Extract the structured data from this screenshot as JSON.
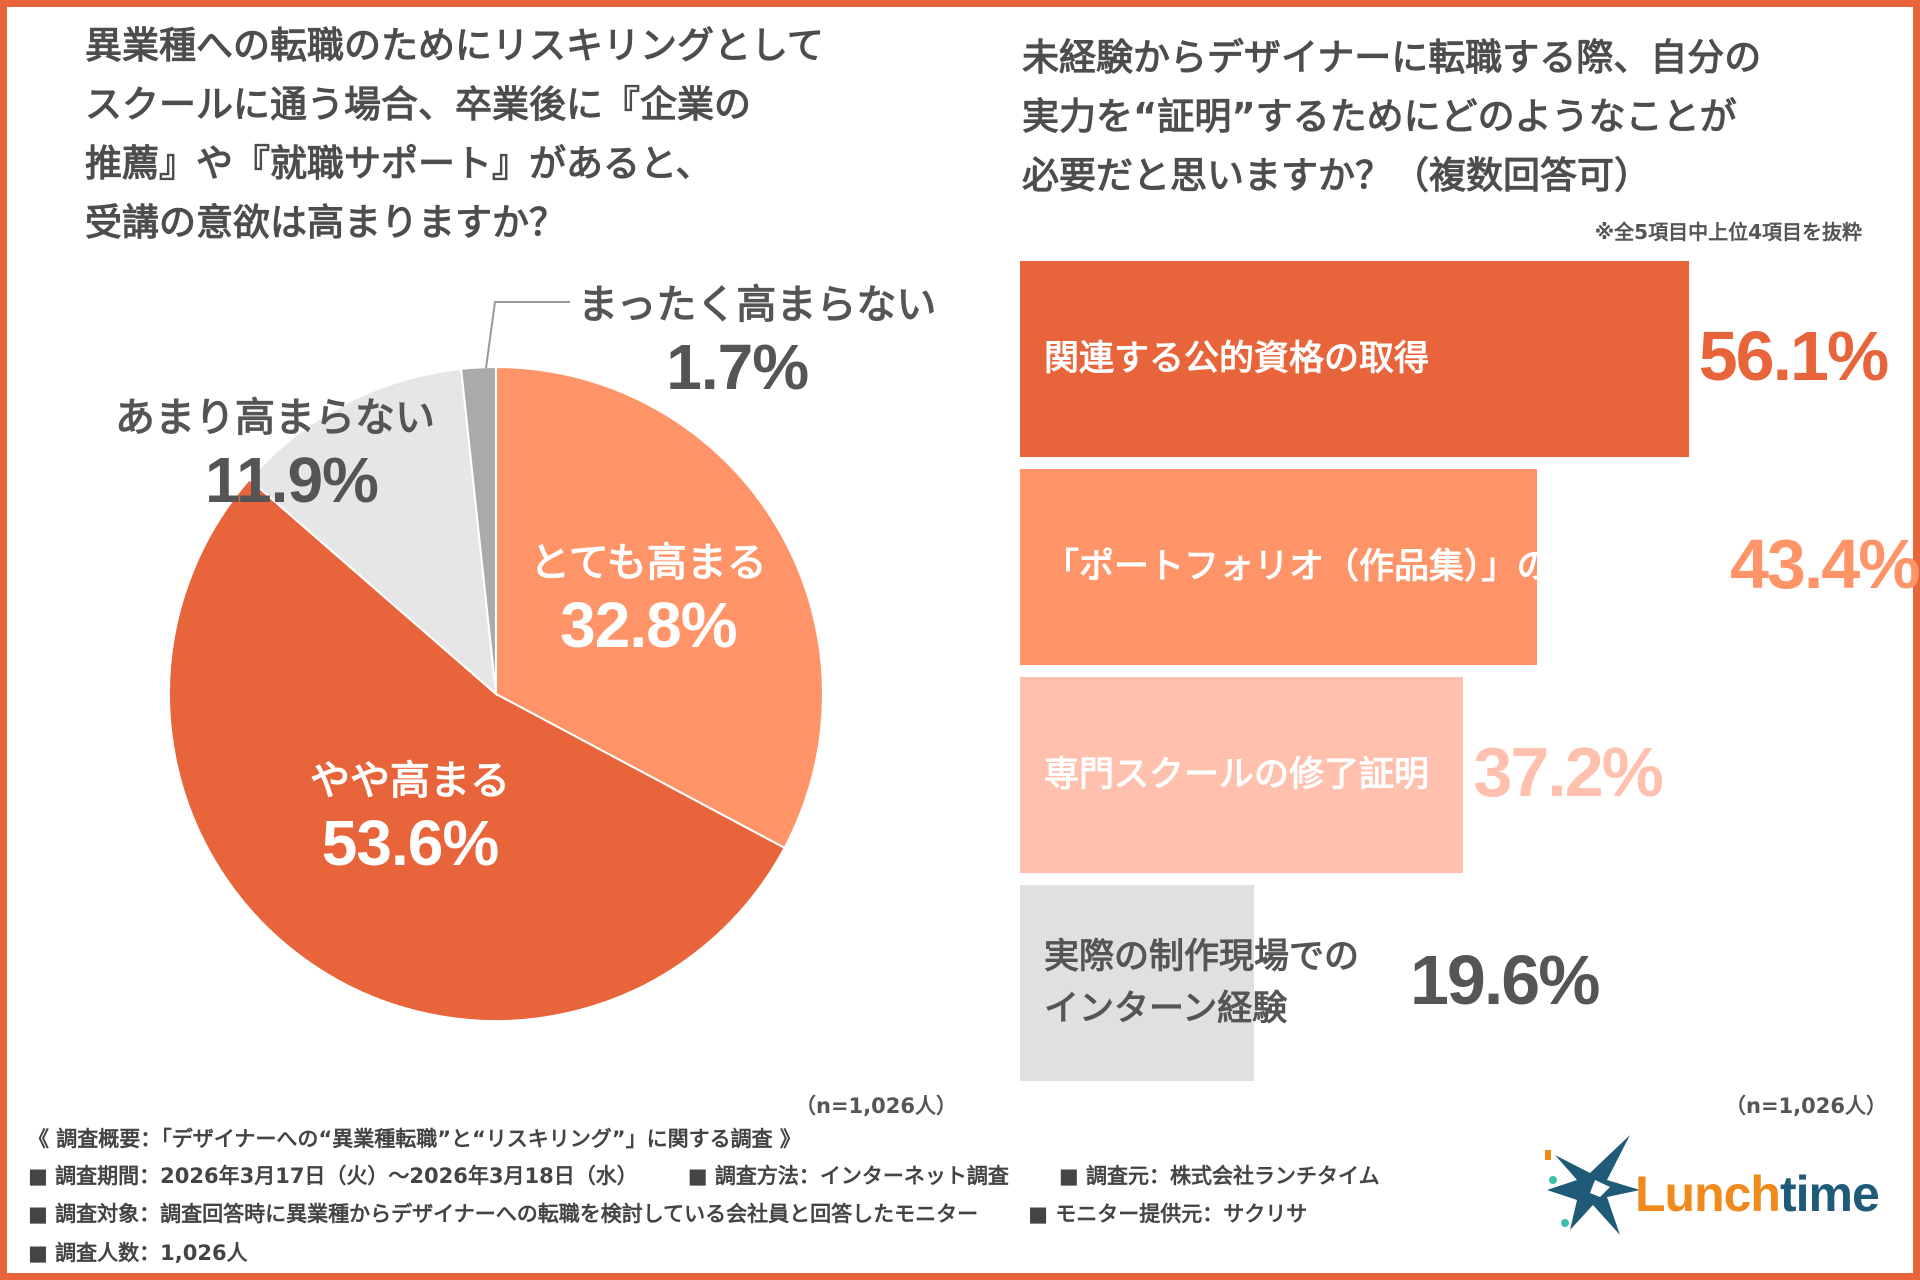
{
  "left_title": "異業種への転職のためにリスキリングとして\nスクールに通う場合、卒業後に『企業の\n推薦』や『就職サポート』があると、\n受講の意欲は高まりますか？",
  "right_title": "未経験からデザイナーに転職する際、自分の\n実力を“証明”するためにどのようなことが\n必要だと思いますか？（複数回答可）",
  "right_note": "※全5項目中上位4項目を抜粋",
  "chart_data": [
    {
      "type": "pie",
      "categories": [
        "とても高まる",
        "やや高まる",
        "あまり高まらない",
        "まったく高まらない"
      ],
      "values": [
        32.8,
        53.6,
        11.9,
        1.7
      ],
      "labels": [
        "32.8%",
        "53.6%",
        "11.9%",
        "1.7%"
      ],
      "colors": [
        "#FF9468",
        "#E8643A",
        "#E6E6E6",
        "#AAAAAA"
      ],
      "start": "12 o'clock, clockwise",
      "n": "（n=1,026人）"
    },
    {
      "type": "bar",
      "orientation": "horizontal",
      "categories": [
        "関連する公的資格の取得",
        "「ポートフォリオ（作品集）」の提出",
        "専門スクールの修了証明",
        "実際の制作現場での\nインターン経験"
      ],
      "values": [
        56.1,
        43.4,
        37.2,
        19.6
      ],
      "labels": [
        "56.1%",
        "43.4%",
        "37.2%",
        "19.6%"
      ],
      "colors": [
        "#E8643A",
        "#FF9468",
        "#FFC0AD",
        "#E0E0E0"
      ],
      "label_colors": [
        "#ffffff",
        "#ffffff",
        "#ffffff",
        "#555555"
      ],
      "value_colors": [
        "#E8643A",
        "#FF9468",
        "#FFC0AD",
        "#555555"
      ],
      "n": "（n=1,026人）"
    }
  ],
  "footer": {
    "summary": "《 調査概要：「デザイナーへの“異業種転職”と“リスキリング”」に関する調査 》",
    "period": "■ 調査期間：2026年3月17日（火）～2026年3月18日（水）",
    "method": "■ 調査方法：インターネット調査",
    "source": "■ 調査元：株式会社ランチタイム",
    "target": "■ 調査対象：調査回答時に異業種からデザイナーへの転職を検討している会社員と回答したモニター",
    "provider": "■ モニター提供元：サクリサ",
    "count": "■ 調査人数：1,026人"
  },
  "logo": {
    "text_orange": "Lunch",
    "text_blue": "time",
    "colors": [
      "#F08A1C",
      "#1F5A78"
    ]
  }
}
